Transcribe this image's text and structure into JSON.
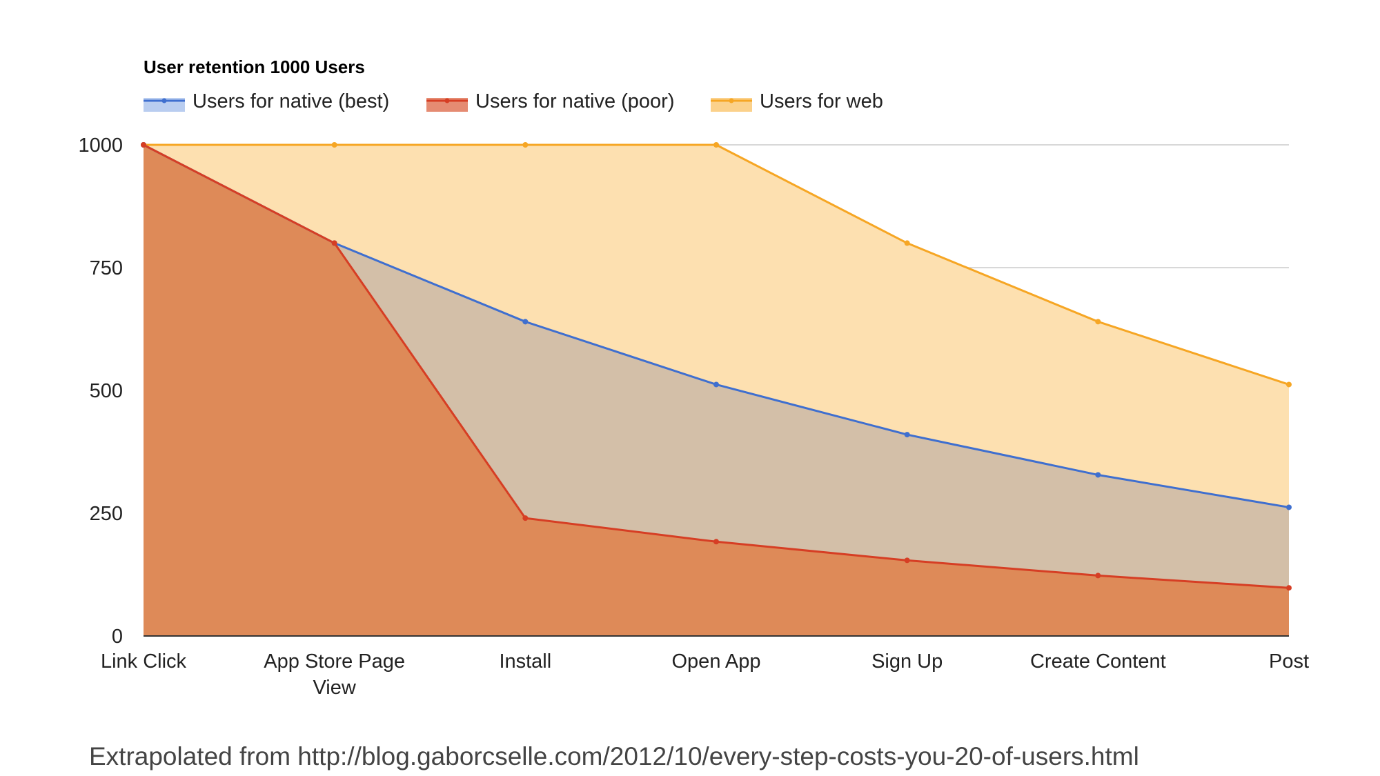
{
  "chart_data": {
    "type": "area",
    "title": "User retention 1000 Users",
    "xlabel": "",
    "ylabel": "",
    "categories": [
      [
        "Link Click"
      ],
      [
        "App Store Page",
        "View"
      ],
      [
        "Install"
      ],
      [
        "Open App"
      ],
      [
        "Sign Up"
      ],
      [
        "Create Content"
      ],
      [
        "Post"
      ]
    ],
    "ylim": [
      0,
      1000
    ],
    "yticks": [
      0,
      250,
      500,
      750,
      1000
    ],
    "grid": true,
    "legend_position": "top-left",
    "series": [
      {
        "name": "Users for web",
        "values": [
          1000,
          1000,
          1000,
          1000,
          800,
          640,
          512
        ],
        "line_color": "#f6a624",
        "fill_color": "#fde0b0"
      },
      {
        "name": "Users for native (best)",
        "values": [
          1000,
          800,
          640,
          512,
          410,
          328,
          262
        ],
        "line_color": "#3f6fcf",
        "fill_color": "#d3bfa8"
      },
      {
        "name": "Users for native (poor)",
        "values": [
          1000,
          800,
          240,
          192,
          154,
          123,
          98
        ],
        "line_color": "#d63e24",
        "fill_color": "#de8a58"
      }
    ],
    "legend_order": [
      "Users for native (best)",
      "Users for native (poor)",
      "Users for web"
    ],
    "legend_swatch_colors": [
      "#b9cdf0",
      "#e58b72",
      "#fbd18b"
    ],
    "annotation": "Extrapolated from http://blog.gaborcselle.com/2012/10/every-step-costs-you-20-of-users.html"
  }
}
